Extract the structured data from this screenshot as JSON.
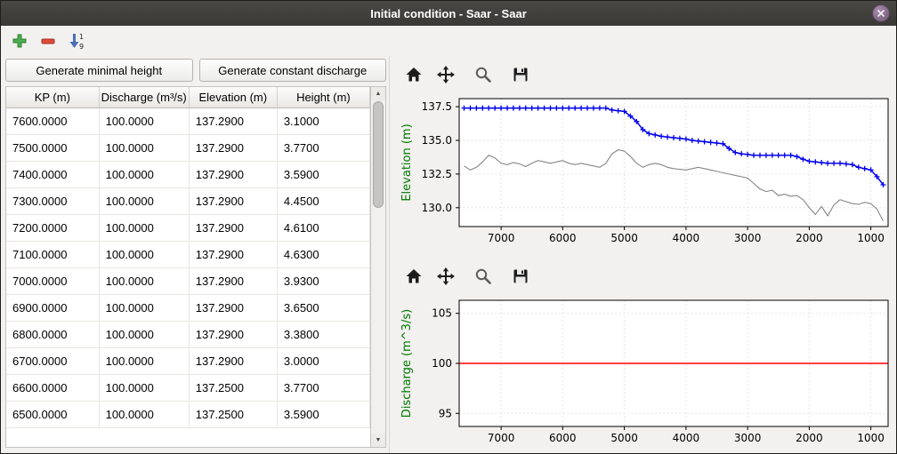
{
  "window": {
    "title": "Initial condition - Saar - Saar"
  },
  "toolbar": {
    "icons": [
      {
        "name": "add-row-icon"
      },
      {
        "name": "remove-row-icon"
      },
      {
        "name": "sort-rows-icon",
        "top_digit": "1",
        "bottom_digit": "9"
      }
    ]
  },
  "left": {
    "buttons": [
      {
        "label": "Generate minimal height"
      },
      {
        "label": "Generate constant discharge"
      }
    ],
    "table": {
      "columns": [
        "KP (m)",
        "Discharge (m³/s)",
        "Elevation (m)",
        "Height (m)"
      ],
      "rows": [
        [
          "7600.0000",
          "100.0000",
          "137.2900",
          "3.1000"
        ],
        [
          "7500.0000",
          "100.0000",
          "137.2900",
          "3.7700"
        ],
        [
          "7400.0000",
          "100.0000",
          "137.2900",
          "3.5900"
        ],
        [
          "7300.0000",
          "100.0000",
          "137.2900",
          "4.4500"
        ],
        [
          "7200.0000",
          "100.0000",
          "137.2900",
          "4.6100"
        ],
        [
          "7100.0000",
          "100.0000",
          "137.2900",
          "4.6300"
        ],
        [
          "7000.0000",
          "100.0000",
          "137.2900",
          "3.9300"
        ],
        [
          "6900.0000",
          "100.0000",
          "137.2900",
          "3.6500"
        ],
        [
          "6800.0000",
          "100.0000",
          "137.2900",
          "3.3800"
        ],
        [
          "6700.0000",
          "100.0000",
          "137.2900",
          "3.0000"
        ],
        [
          "6600.0000",
          "100.0000",
          "137.2500",
          "3.7700"
        ],
        [
          "6500.0000",
          "100.0000",
          "137.2500",
          "3.5900"
        ]
      ]
    }
  },
  "nav_toolbar": {
    "icons": [
      "home",
      "pan",
      "zoom",
      "save"
    ]
  },
  "chart_data": [
    {
      "type": "line",
      "title": "",
      "xlabel": "",
      "ylabel": "Elevation (m)",
      "ylabel_color": "#007800",
      "xlim": [
        7680,
        720
      ],
      "ylim": [
        128.6,
        138.1
      ],
      "x_reversed": true,
      "grid": true,
      "xticks": [
        7000,
        6000,
        5000,
        4000,
        3000,
        2000,
        1000
      ],
      "xtick_labels": [
        "7000",
        "6000",
        "5000",
        "4000",
        "3000",
        "2000",
        "1000"
      ],
      "yticks": [
        130.0,
        132.5,
        135.0,
        137.5
      ],
      "ytick_labels": [
        "130.0",
        "132.5",
        "135.0",
        "137.5"
      ],
      "series": [
        {
          "name": "bottom-elevation",
          "color": "#858585",
          "width": 1.1,
          "x_start": 7600,
          "x_step": -100,
          "y": [
            133.1,
            132.8,
            133.0,
            133.4,
            133.9,
            133.7,
            133.3,
            133.2,
            133.35,
            133.25,
            133.05,
            133.3,
            133.5,
            133.4,
            133.3,
            133.4,
            133.5,
            133.3,
            133.2,
            133.3,
            133.2,
            133.1,
            133.0,
            133.3,
            134.0,
            134.3,
            134.2,
            133.8,
            133.3,
            133.0,
            133.2,
            133.3,
            133.2,
            133.0,
            132.9,
            132.85,
            132.8,
            132.9,
            133.0,
            132.9,
            132.8,
            132.7,
            132.6,
            132.5,
            132.4,
            132.3,
            132.2,
            131.8,
            131.4,
            131.2,
            131.3,
            130.9,
            131.0,
            130.85,
            130.9,
            130.6,
            130.0,
            129.5,
            130.1,
            129.4,
            130.2,
            130.6,
            130.45,
            130.3,
            130.25,
            130.4,
            130.3,
            129.9,
            129.0
          ]
        },
        {
          "name": "water-surface-elevation",
          "color": "#0000ee",
          "width": 1.5,
          "marker": "+",
          "x_start": 7600,
          "x_step": -100,
          "y": [
            137.4,
            137.4,
            137.4,
            137.4,
            137.4,
            137.4,
            137.4,
            137.4,
            137.4,
            137.4,
            137.4,
            137.4,
            137.4,
            137.4,
            137.4,
            137.4,
            137.4,
            137.4,
            137.4,
            137.4,
            137.4,
            137.4,
            137.4,
            137.4,
            137.25,
            137.2,
            137.15,
            136.8,
            136.4,
            135.8,
            135.5,
            135.4,
            135.3,
            135.25,
            135.2,
            135.15,
            135.1,
            135.0,
            134.95,
            134.9,
            134.85,
            134.8,
            134.75,
            134.4,
            134.1,
            134.0,
            133.95,
            133.9,
            133.9,
            133.9,
            133.9,
            133.9,
            133.9,
            133.9,
            133.8,
            133.6,
            133.45,
            133.4,
            133.35,
            133.3,
            133.3,
            133.3,
            133.25,
            133.2,
            133.0,
            132.9,
            132.8,
            132.3,
            131.7
          ]
        }
      ]
    },
    {
      "type": "line",
      "title": "",
      "xlabel": "",
      "ylabel": "Discharge (m^3/s)",
      "ylabel_color": "#007800",
      "xlim": [
        7680,
        720
      ],
      "ylim": [
        93.7,
        106.3
      ],
      "x_reversed": true,
      "grid": true,
      "xticks": [
        7000,
        6000,
        5000,
        4000,
        3000,
        2000,
        1000
      ],
      "xtick_labels": [
        "7000",
        "6000",
        "5000",
        "4000",
        "3000",
        "2000",
        "1000"
      ],
      "yticks": [
        95,
        100,
        105
      ],
      "ytick_labels": [
        "95",
        "100",
        "105"
      ],
      "series": [
        {
          "name": "constant-discharge",
          "color": "#ff0000",
          "width": 1.5,
          "x": [
            7680,
            720
          ],
          "y": [
            100,
            100
          ]
        }
      ]
    }
  ]
}
